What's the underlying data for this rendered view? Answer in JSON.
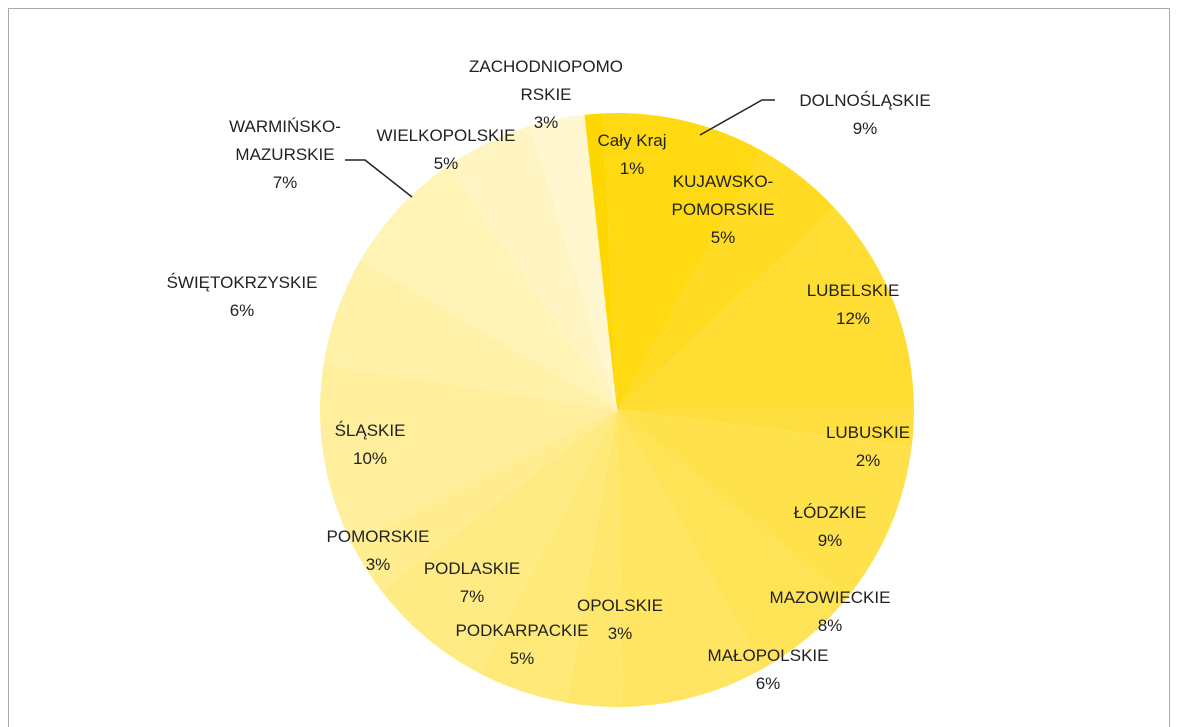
{
  "chart_data": {
    "type": "pie",
    "categories": [
      "Cały Kraj",
      "DOLNOŚLĄSKIE",
      "KUJAWSKO-POMORSKIE",
      "LUBELSKIE",
      "LUBUSKIE",
      "ŁÓDZKIE",
      "MAŁOPOLSKIE",
      "MAZOWIECKIE",
      "OPOLSKIE",
      "PODKARPACKIE",
      "PODLASKIE",
      "POMORSKIE",
      "ŚLĄSKIE",
      "ŚWIĘTOKRZYSKIE",
      "WARMIŃSKO-MAZURSKIE",
      "WIELKOPOLSKIE",
      "ZACHODNIOPOMORSKIE"
    ],
    "values": [
      1,
      9,
      5,
      12,
      2,
      9,
      6,
      8,
      3,
      5,
      7,
      3,
      10,
      6,
      7,
      5,
      3
    ],
    "value_labels": [
      "1%",
      "9%",
      "5%",
      "12%",
      "2%",
      "9%",
      "6%",
      "8%",
      "3%",
      "5%",
      "7%",
      "3%",
      "10%",
      "6%",
      "7%",
      "5%",
      "3%"
    ],
    "colors": [
      "#FFD700",
      "#FFD912",
      "#FFDB24",
      "#FFDD33",
      "#FFDF40",
      "#FFE14C",
      "#FFE357",
      "#FFE562",
      "#FFE76D",
      "#FFE978",
      "#FFEB84",
      "#FFED90",
      "#FFEF9C",
      "#FFF1A8",
      "#FFF3B5",
      "#FFF5C2",
      "#FFF7D0"
    ]
  }
}
